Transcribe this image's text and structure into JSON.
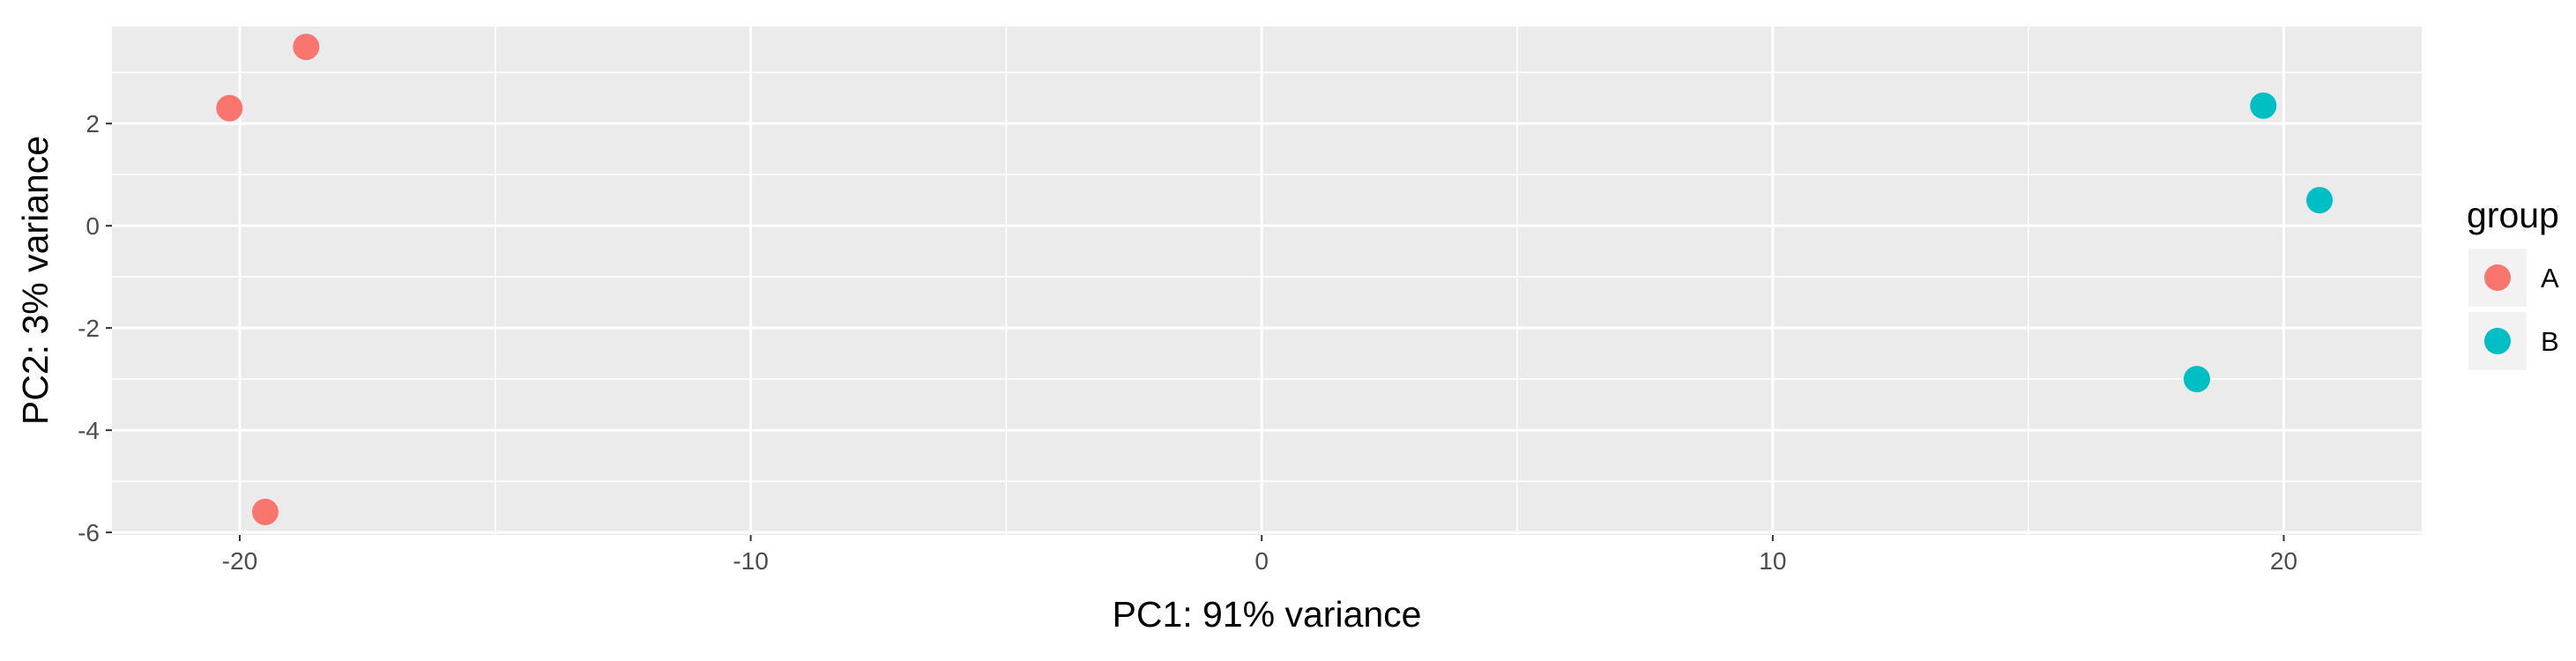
{
  "chart_data": {
    "type": "scatter",
    "title": "",
    "xlabel": "PC1: 91% variance",
    "ylabel": "PC2: 3% variance",
    "xlim": [
      -22.5,
      22.7
    ],
    "ylim": [
      -6.05,
      3.9
    ],
    "x_ticks": [
      -20,
      -10,
      0,
      10,
      20
    ],
    "y_ticks": [
      -6,
      -4,
      -2,
      0,
      2
    ],
    "x_tick_labels": [
      "-20",
      "-10",
      "0",
      "10",
      "20"
    ],
    "y_tick_labels": [
      "-6",
      "-4",
      "-2",
      "0",
      "2"
    ],
    "grid": true,
    "legend_position": "right",
    "legend_title": "group",
    "series": [
      {
        "name": "A",
        "color": "#F8766D",
        "points": [
          {
            "x": -18.7,
            "y": 3.5
          },
          {
            "x": -20.2,
            "y": 2.3
          },
          {
            "x": -19.5,
            "y": -5.6
          }
        ]
      },
      {
        "name": "B",
        "color": "#00BFC4",
        "points": [
          {
            "x": 19.6,
            "y": 2.35
          },
          {
            "x": 20.7,
            "y": 0.5
          },
          {
            "x": 18.3,
            "y": -3.0
          }
        ]
      }
    ]
  }
}
